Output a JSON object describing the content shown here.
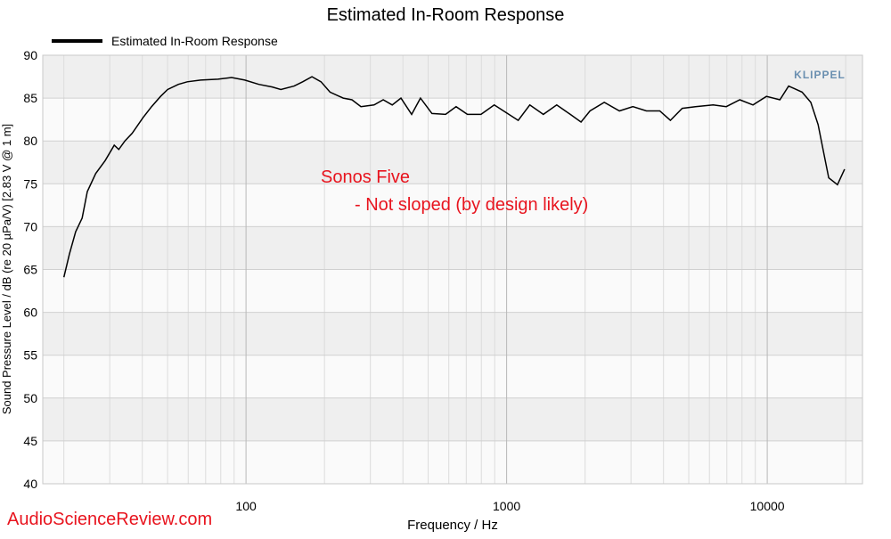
{
  "chart_data": {
    "type": "line",
    "title": "Estimated In-Room Response",
    "xlabel": "Frequency / Hz",
    "ylabel": "Sound Pressure Level / dB (re 20 µPa/V)  [2.83  V @ 1  m]",
    "logo": "KLIPPEL",
    "watermark": "AudioScienceReview.com",
    "annotations": [
      "Sonos Five",
      "- Not sloped (by design likely)"
    ],
    "xscale": "log",
    "grid": true,
    "legend": "top-left",
    "xlim": [
      16.6,
      23200
    ],
    "ylim": [
      40,
      90
    ],
    "xticks": [
      100,
      1000,
      10000
    ],
    "yticks": [
      40,
      45,
      50,
      55,
      60,
      65,
      70,
      75,
      80,
      85,
      90
    ],
    "x": [
      20,
      21,
      22.2,
      23.5,
      24.6,
      26.5,
      28.8,
      31.2,
      32.5,
      34.3,
      36.6,
      40.2,
      43.4,
      47,
      50,
      55,
      59.5,
      67,
      78,
      88,
      99,
      112,
      126,
      136,
      153,
      165,
      179,
      194,
      210,
      236,
      255,
      276,
      310,
      336,
      364,
      393,
      432,
      467,
      517,
      583,
      640,
      707,
      797,
      896,
      1008,
      1108,
      1227,
      1383,
      1557,
      1755,
      1930,
      2090,
      2370,
      2710,
      3050,
      3440,
      3870,
      4250,
      4720,
      5300,
      6200,
      6960,
      7850,
      8820,
      9930,
      11180,
      12080,
      13600,
      14700,
      15670,
      16550,
      17220,
      18600,
      19800
    ],
    "series": [
      {
        "name": "Estimated In-Room Response",
        "color": "#000000",
        "values": [
          64.1,
          66.8,
          69.4,
          71,
          74.1,
          76.2,
          77.7,
          79.5,
          79,
          80,
          80.9,
          82.7,
          84,
          85.2,
          86,
          86.6,
          86.9,
          87.1,
          87.2,
          87.4,
          87.1,
          86.6,
          86.3,
          86,
          86.4,
          86.9,
          87.5,
          86.9,
          85.7,
          85,
          84.8,
          84,
          84.2,
          84.8,
          84.2,
          85,
          83.1,
          85,
          83.2,
          83.1,
          84,
          83.1,
          83.1,
          84.2,
          83.2,
          82.4,
          84.2,
          83.1,
          84.2,
          83.1,
          82.2,
          83.5,
          84.5,
          83.5,
          84,
          83.5,
          83.5,
          82.4,
          83.8,
          84,
          84.2,
          84,
          84.8,
          84.2,
          85.2,
          84.8,
          86.4,
          85.7,
          84.5,
          81.9,
          78.3,
          75.7,
          74.9,
          76.7
        ]
      }
    ]
  }
}
